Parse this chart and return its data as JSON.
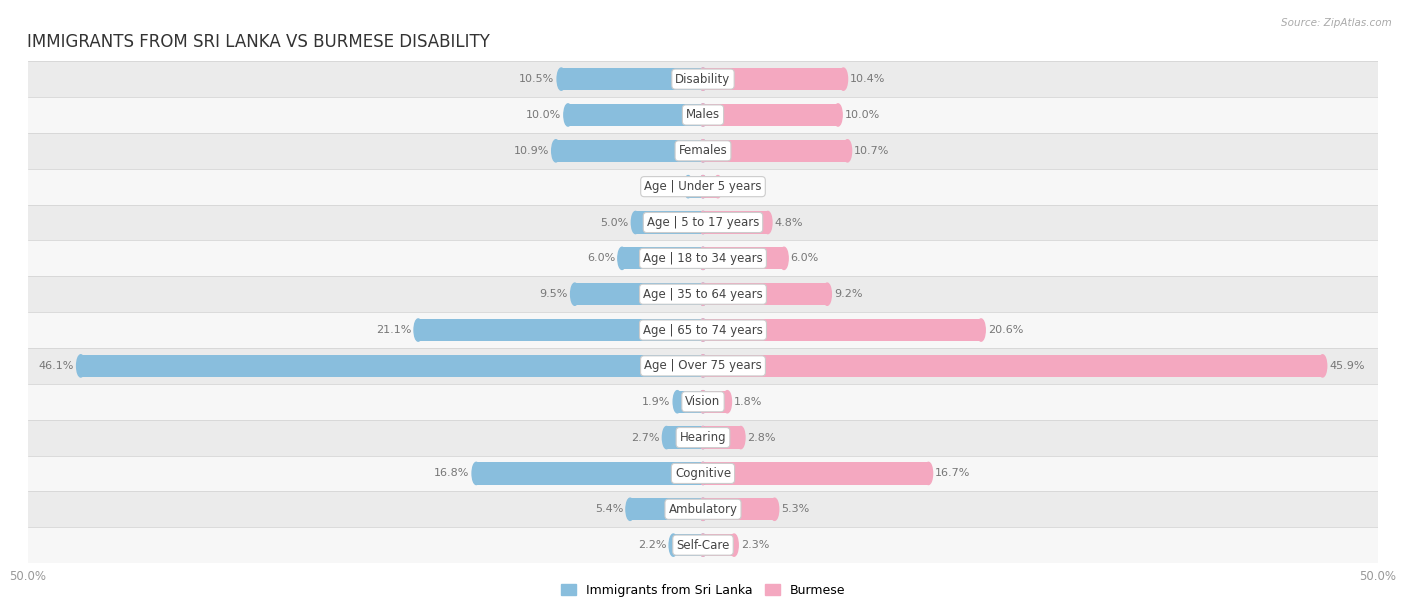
{
  "title": "IMMIGRANTS FROM SRI LANKA VS BURMESE DISABILITY",
  "source": "Source: ZipAtlas.com",
  "categories": [
    "Disability",
    "Males",
    "Females",
    "Age | Under 5 years",
    "Age | 5 to 17 years",
    "Age | 18 to 34 years",
    "Age | 35 to 64 years",
    "Age | 65 to 74 years",
    "Age | Over 75 years",
    "Vision",
    "Hearing",
    "Cognitive",
    "Ambulatory",
    "Self-Care"
  ],
  "sri_lanka": [
    10.5,
    10.0,
    10.9,
    1.1,
    5.0,
    6.0,
    9.5,
    21.1,
    46.1,
    1.9,
    2.7,
    16.8,
    5.4,
    2.2
  ],
  "burmese": [
    10.4,
    10.0,
    10.7,
    1.1,
    4.8,
    6.0,
    9.2,
    20.6,
    45.9,
    1.8,
    2.8,
    16.7,
    5.3,
    2.3
  ],
  "color_sri_lanka": "#89bedd",
  "color_burmese": "#f4a8c0",
  "color_sri_lanka_dark": "#5b9dc0",
  "color_burmese_dark": "#e8728f",
  "axis_limit": 50.0,
  "row_bg_even": "#ebebeb",
  "row_bg_odd": "#f7f7f7",
  "title_fontsize": 12,
  "label_fontsize": 8.5,
  "value_fontsize": 8,
  "legend_fontsize": 9,
  "bar_height": 0.62
}
